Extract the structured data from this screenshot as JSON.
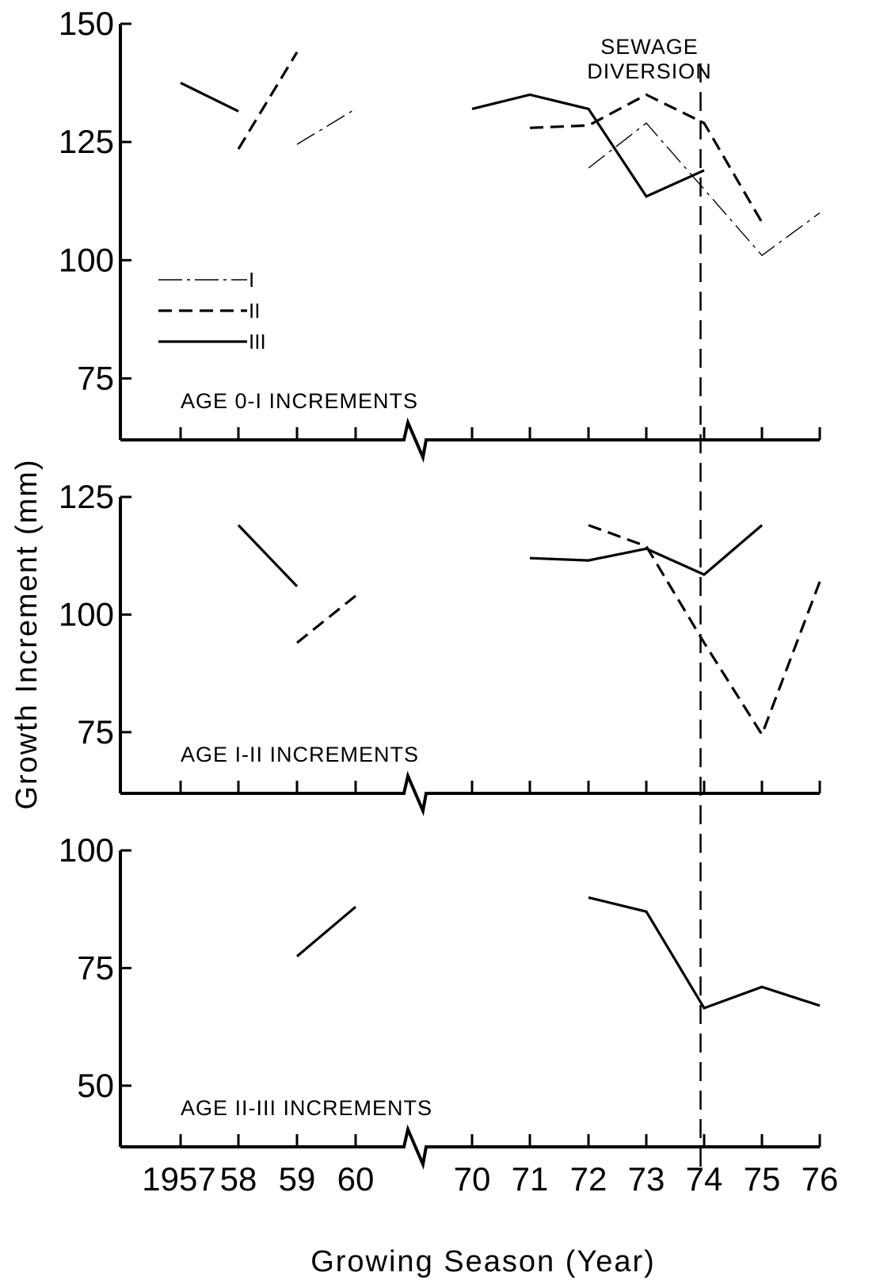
{
  "chart_data": {
    "type": "line",
    "xlabel": "Growing Season (Year)",
    "ylabel": "Growth Increment (mm)",
    "x_categories": [
      "1957",
      "58",
      "59",
      "60",
      "70",
      "71",
      "72",
      "73",
      "74",
      "75",
      "76"
    ],
    "x_axis_break": "between 60 and 70",
    "annotation": {
      "lines": [
        "SEWAGE",
        "DIVERSION"
      ],
      "x_position": 73.5
    },
    "legend": [
      {
        "label": "I",
        "style": "dash-dot-thin"
      },
      {
        "label": "II",
        "style": "dashed"
      },
      {
        "label": "III",
        "style": "solid"
      }
    ],
    "panels": [
      {
        "label": "AGE 0-I INCREMENTS",
        "ylim": [
          62,
          150
        ],
        "yticks": [
          75,
          100,
          125,
          150
        ],
        "series": [
          {
            "name": "I",
            "style": "dash-dot-thin",
            "segments": [
              [
                [
                  59,
                  124.5
                ],
                [
                  60,
                  132
                ]
              ],
              [
                [
                  72,
                  119.5
                ],
                [
                  73,
                  129
                ],
                [
                  74,
                  115
                ],
                [
                  75,
                  101
                ],
                [
                  76,
                  110
                ]
              ]
            ]
          },
          {
            "name": "II",
            "style": "dashed",
            "segments": [
              [
                [
                  58,
                  123.5
                ],
                [
                  59,
                  144
                ]
              ],
              [
                [
                  71,
                  128
                ],
                [
                  72,
                  128.5
                ],
                [
                  73,
                  135
                ],
                [
                  74,
                  129
                ],
                [
                  75,
                  108
                ]
              ]
            ]
          },
          {
            "name": "III",
            "style": "solid",
            "segments": [
              [
                [
                  1957,
                  137.5
                ],
                [
                  58,
                  131.5
                ]
              ],
              [
                [
                  70,
                  132
                ],
                [
                  71,
                  135
                ],
                [
                  72,
                  132
                ],
                [
                  73,
                  113.5
                ],
                [
                  74,
                  119
                ]
              ]
            ]
          }
        ]
      },
      {
        "label": "AGE I-II INCREMENTS",
        "ylim": [
          62,
          125
        ],
        "yticks": [
          75,
          100,
          125
        ],
        "series": [
          {
            "name": "II",
            "style": "dashed",
            "segments": [
              [
                [
                  59,
                  94
                ],
                [
                  60,
                  104
                ]
              ],
              [
                [
                  72,
                  119
                ],
                [
                  73,
                  114.5
                ],
                [
                  74,
                  94
                ],
                [
                  75,
                  74.5
                ],
                [
                  76,
                  107
                ]
              ]
            ]
          },
          {
            "name": "III",
            "style": "solid",
            "segments": [
              [
                [
                  58,
                  119
                ],
                [
                  59,
                  106
                ]
              ],
              [
                [
                  71,
                  112
                ],
                [
                  72,
                  111.5
                ],
                [
                  73,
                  114
                ],
                [
                  74,
                  108.5
                ],
                [
                  75,
                  119
                ]
              ]
            ]
          }
        ]
      },
      {
        "label": "AGE II-III INCREMENTS",
        "ylim": [
          37,
          100
        ],
        "yticks": [
          50,
          75,
          100
        ],
        "series": [
          {
            "name": "III",
            "style": "solid",
            "segments": [
              [
                [
                  59,
                  77.5
                ],
                [
                  60,
                  88
                ]
              ],
              [
                [
                  72,
                  90
                ],
                [
                  73,
                  87
                ],
                [
                  74,
                  66.5
                ],
                [
                  75,
                  71
                ],
                [
                  76,
                  67
                ]
              ]
            ]
          }
        ]
      }
    ]
  }
}
